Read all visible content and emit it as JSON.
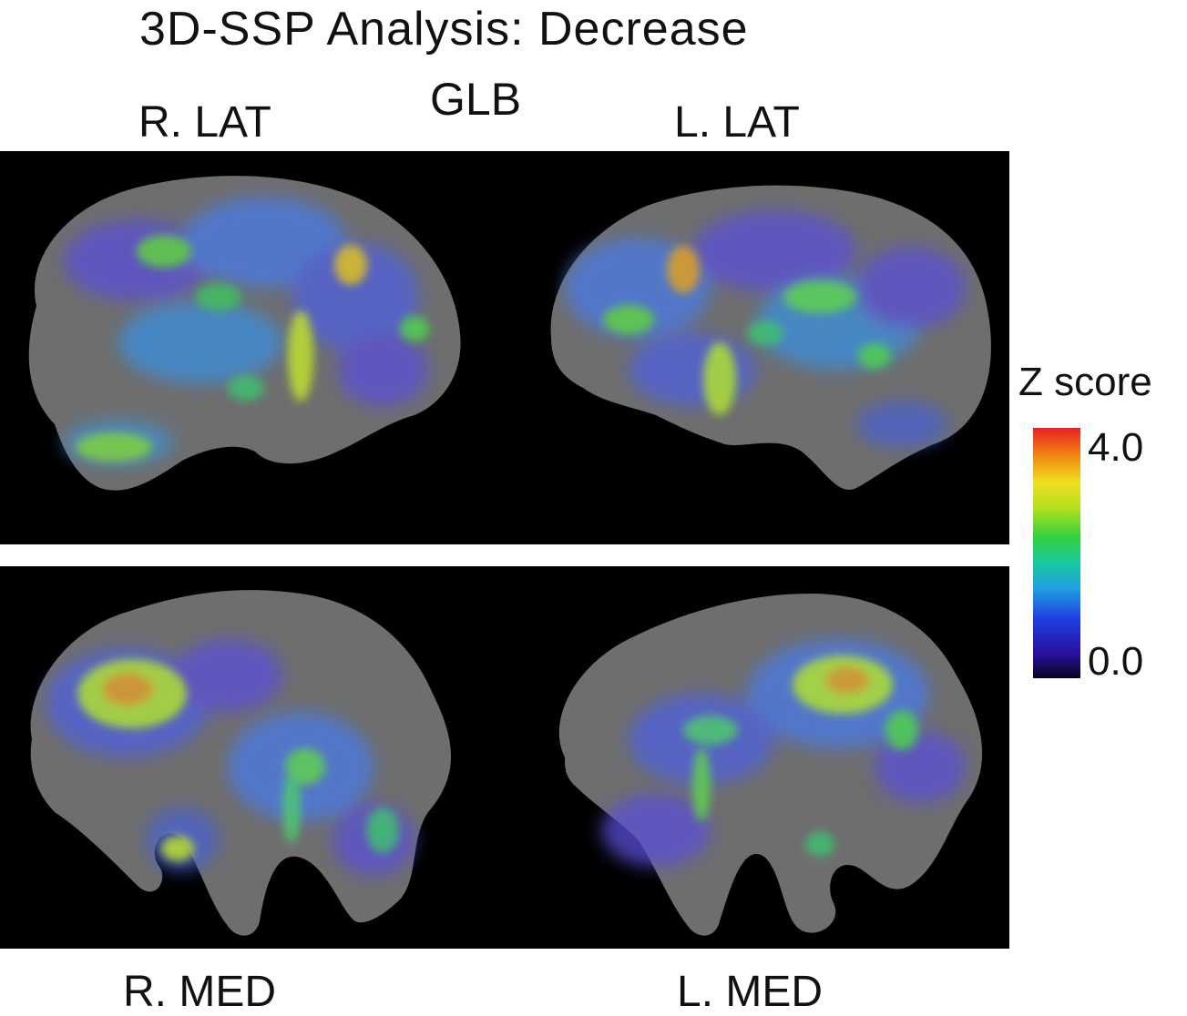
{
  "figure": {
    "title": "3D-SSP Analysis: Decrease",
    "group_label": "GLB",
    "views": {
      "right_lateral": "R. LAT",
      "left_lateral": "L. LAT",
      "right_medial": "R. MED",
      "left_medial": "L. MED"
    }
  },
  "colorbar": {
    "title": "Z score",
    "max_label": "4.0",
    "min_label": "0.0"
  },
  "colors": {
    "background": "#000000",
    "brain": "#707070",
    "hot": "#e82020",
    "cold": "#2a10a0"
  }
}
